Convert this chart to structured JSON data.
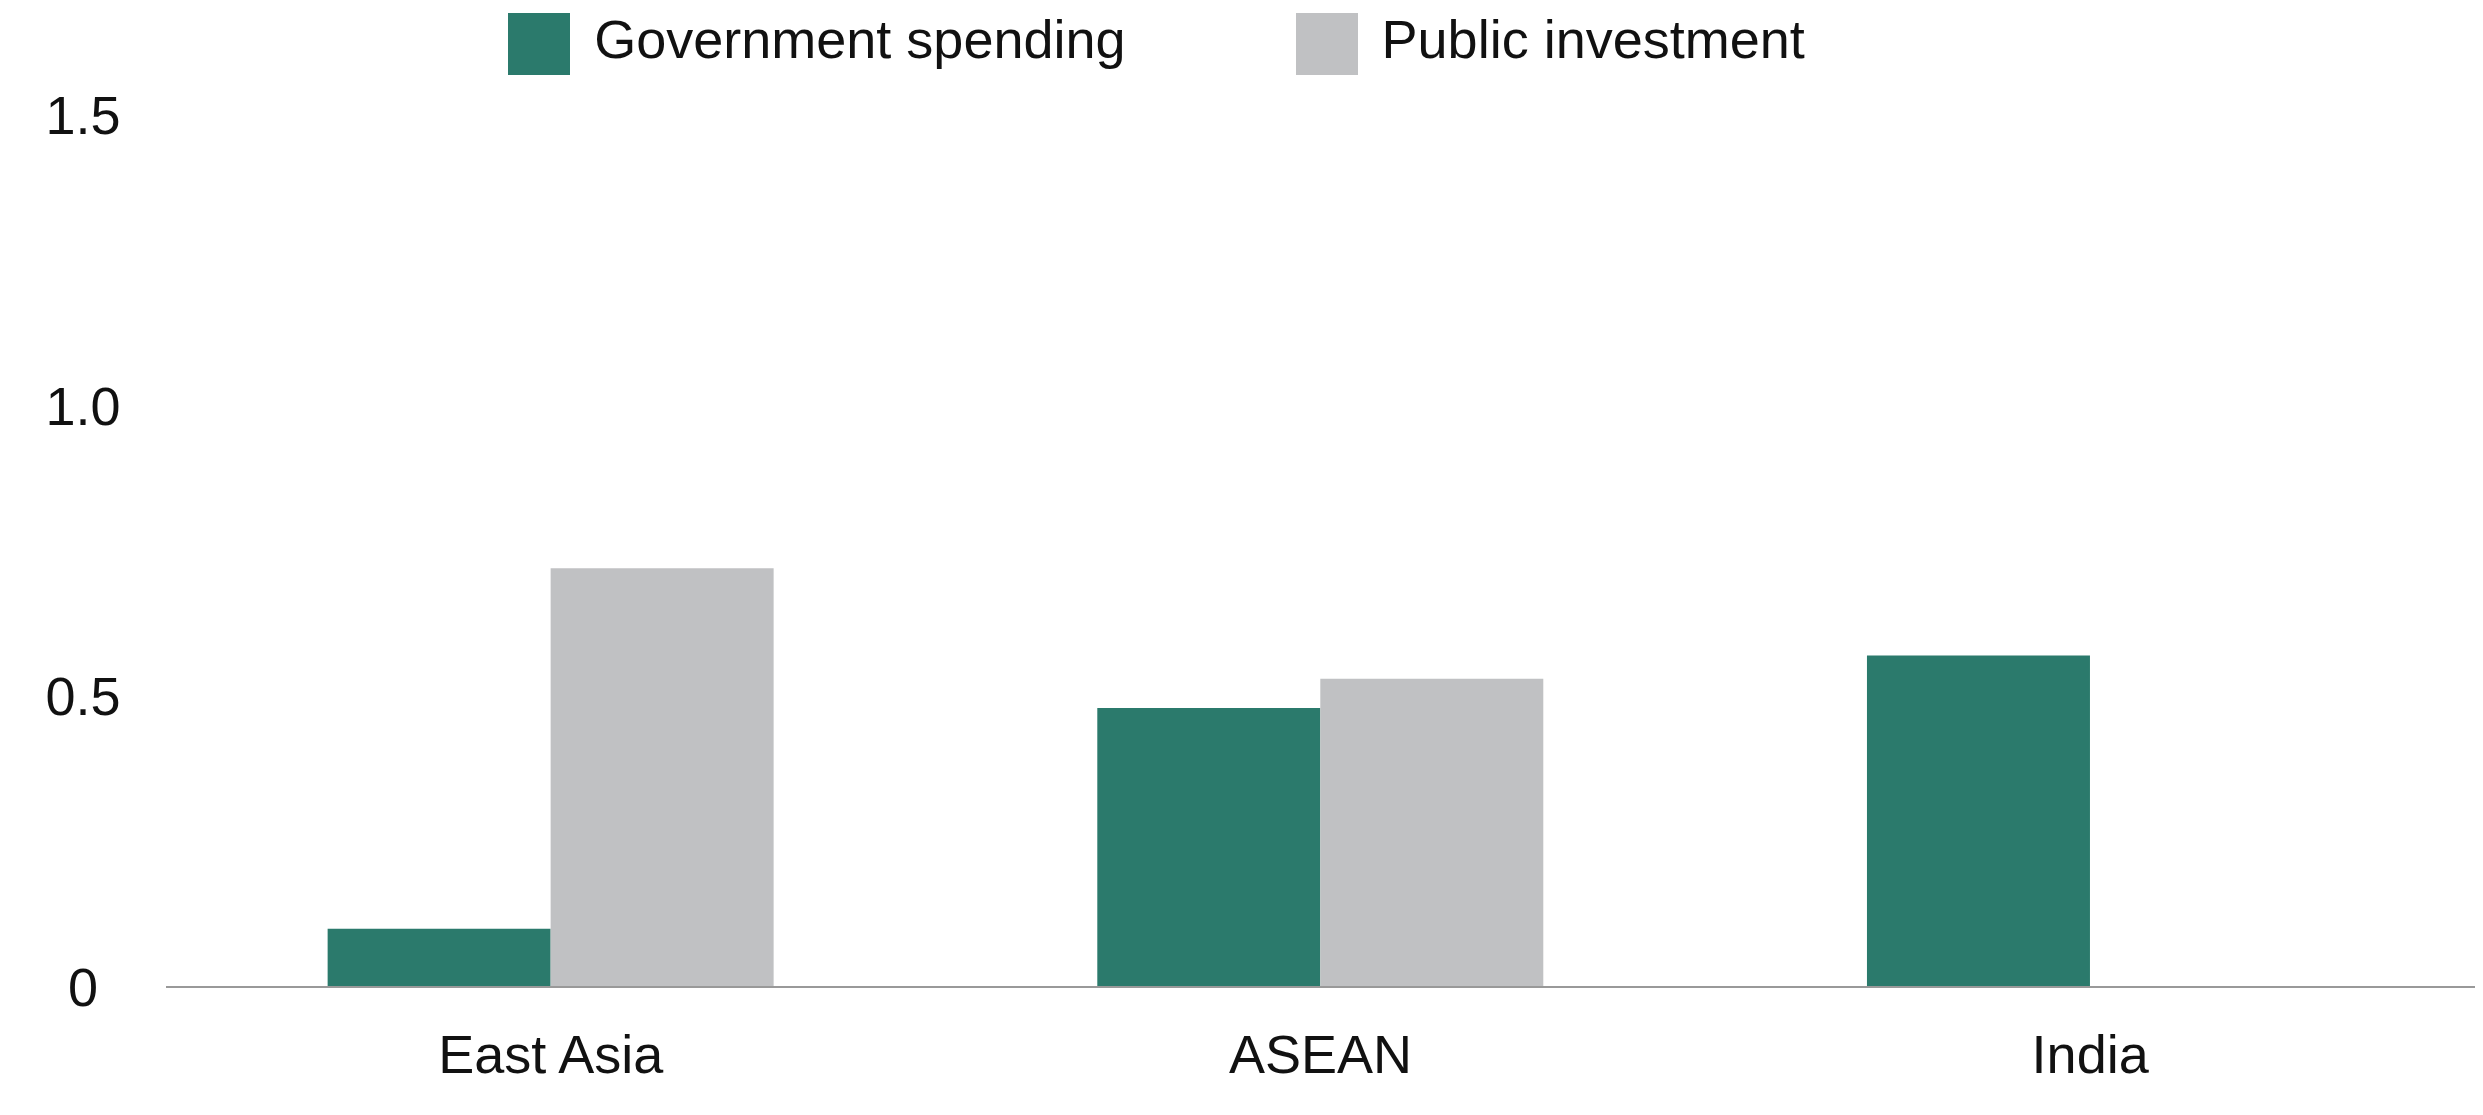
{
  "chart_data": {
    "type": "bar",
    "categories": [
      "East Asia",
      "ASEAN",
      "India"
    ],
    "series": [
      {
        "name": "Government spending",
        "color": "#2b7a6c",
        "values": [
          0.1,
          0.48,
          0.57
        ]
      },
      {
        "name": "Public investment",
        "color": "#c0c1c3",
        "values": [
          0.72,
          0.53,
          null
        ]
      }
    ],
    "ylim": [
      0,
      1.5
    ],
    "yticks": [
      0,
      {
        "value": 0.5,
        "label": "0.5"
      },
      {
        "value": 1,
        "label": "1.0"
      },
      {
        "value": 1.5,
        "label": "1.5"
      }
    ],
    "grid": false,
    "legend": "top"
  }
}
